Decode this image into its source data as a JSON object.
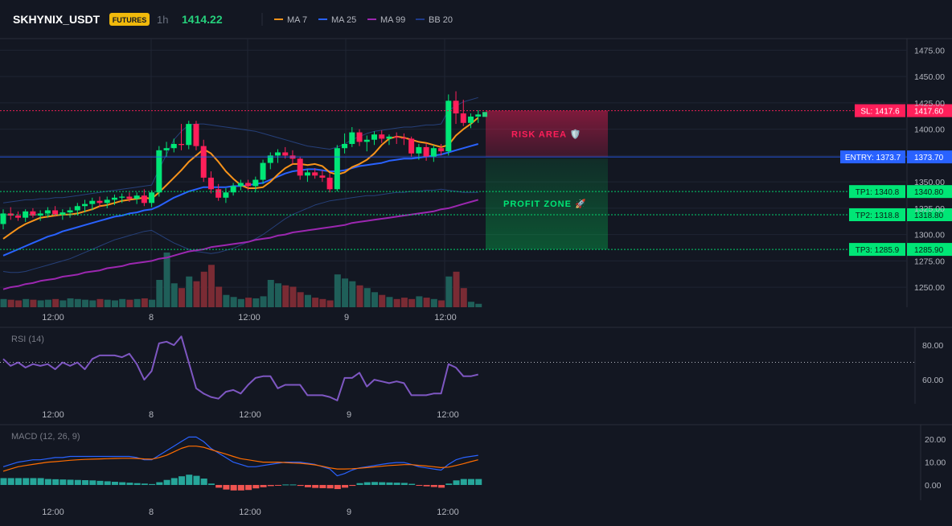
{
  "header": {
    "symbol": "SKHYNIX_USDT",
    "badge": "FUTURES",
    "interval": "1h",
    "price": "1414.22",
    "legend": [
      {
        "label": "MA 7",
        "color": "#f7931a"
      },
      {
        "label": "MA 25",
        "color": "#2962ff"
      },
      {
        "label": "MA 99",
        "color": "#9c27b0"
      },
      {
        "label": "BB 20",
        "color": "#1e3a8a"
      }
    ]
  },
  "colors": {
    "up": "#26a69a",
    "upBright": "#00e676",
    "down": "#ef5350",
    "downBright": "#ff1f5a",
    "sl": "#ff1f5a",
    "entry": "#2962ff",
    "tp": "#00e676",
    "rsi": "#7e57c2",
    "macd": "#2962ff",
    "signal": "#ff6d00"
  },
  "time_axis": [
    "12:00",
    "8",
    "12:00",
    "9",
    "12:00"
  ],
  "chart_data": [
    {
      "type": "candlestick",
      "title": "",
      "xlabel": "",
      "ylabel": "",
      "ylim": [
        1231,
        1486
      ],
      "y_ticks": [
        1475,
        1450,
        1425,
        1400,
        1375,
        1350,
        1325,
        1300,
        1275,
        1250
      ],
      "y_tick_labels": [
        "1475.00",
        "1450.00",
        "1425.00",
        "1400.00",
        "",
        "1350.00",
        "1325.00",
        "1300.00",
        "1275.00",
        "1250.00"
      ],
      "candles": [
        [
          1310,
          1324,
          1305,
          1320
        ],
        [
          1320,
          1326,
          1314,
          1318
        ],
        [
          1318,
          1322,
          1313,
          1316
        ],
        [
          1316,
          1324,
          1312,
          1322
        ],
        [
          1322,
          1325,
          1316,
          1318
        ],
        [
          1318,
          1323,
          1313,
          1320
        ],
        [
          1320,
          1326,
          1316,
          1323
        ],
        [
          1323,
          1327,
          1317,
          1319
        ],
        [
          1319,
          1324,
          1314,
          1321
        ],
        [
          1321,
          1326,
          1316,
          1323
        ],
        [
          1323,
          1330,
          1318,
          1327
        ],
        [
          1327,
          1333,
          1321,
          1329
        ],
        [
          1329,
          1335,
          1323,
          1332
        ],
        [
          1332,
          1336,
          1326,
          1330
        ],
        [
          1330,
          1336,
          1325,
          1333
        ],
        [
          1333,
          1338,
          1328,
          1335
        ],
        [
          1335,
          1339,
          1330,
          1336
        ],
        [
          1336,
          1340,
          1331,
          1334
        ],
        [
          1334,
          1340,
          1329,
          1337
        ],
        [
          1337,
          1343,
          1327,
          1330
        ],
        [
          1330,
          1342,
          1326,
          1340
        ],
        [
          1340,
          1384,
          1336,
          1380
        ],
        [
          1380,
          1388,
          1374,
          1382
        ],
        [
          1382,
          1391,
          1378,
          1386
        ],
        [
          1386,
          1405,
          1380,
          1385
        ],
        [
          1385,
          1408,
          1381,
          1405
        ],
        [
          1405,
          1408,
          1380,
          1384
        ],
        [
          1384,
          1390,
          1350,
          1354
        ],
        [
          1354,
          1360,
          1339,
          1343
        ],
        [
          1343,
          1348,
          1332,
          1335
        ],
        [
          1335,
          1344,
          1330,
          1340
        ],
        [
          1340,
          1349,
          1337,
          1346
        ],
        [
          1346,
          1352,
          1342,
          1349
        ],
        [
          1349,
          1352,
          1342,
          1346
        ],
        [
          1346,
          1355,
          1340,
          1352
        ],
        [
          1352,
          1371,
          1348,
          1368
        ],
        [
          1368,
          1378,
          1362,
          1375
        ],
        [
          1375,
          1381,
          1368,
          1378
        ],
        [
          1378,
          1383,
          1372,
          1375
        ],
        [
          1375,
          1380,
          1367,
          1372
        ],
        [
          1372,
          1374,
          1352,
          1356
        ],
        [
          1356,
          1362,
          1350,
          1359
        ],
        [
          1359,
          1363,
          1353,
          1356
        ],
        [
          1356,
          1361,
          1350,
          1354
        ],
        [
          1354,
          1358,
          1340,
          1343
        ],
        [
          1343,
          1385,
          1341,
          1382
        ],
        [
          1382,
          1396,
          1377,
          1386
        ],
        [
          1386,
          1402,
          1383,
          1397
        ],
        [
          1397,
          1400,
          1384,
          1388
        ],
        [
          1388,
          1394,
          1379,
          1390
        ],
        [
          1390,
          1398,
          1385,
          1395
        ],
        [
          1395,
          1399,
          1387,
          1391
        ],
        [
          1391,
          1395,
          1385,
          1393
        ],
        [
          1393,
          1397,
          1386,
          1392
        ],
        [
          1392,
          1396,
          1385,
          1391
        ],
        [
          1391,
          1393,
          1374,
          1377
        ],
        [
          1377,
          1386,
          1371,
          1383
        ],
        [
          1383,
          1387,
          1370,
          1374
        ],
        [
          1374,
          1385,
          1369,
          1382
        ],
        [
          1382,
          1386,
          1375,
          1379
        ],
        [
          1379,
          1433,
          1375,
          1427
        ],
        [
          1427,
          1436,
          1405,
          1415
        ],
        [
          1415,
          1428,
          1403,
          1406
        ],
        [
          1406,
          1415,
          1401,
          1412
        ],
        [
          1412,
          1418,
          1406,
          1414
        ]
      ],
      "ma7": [
        1296,
        1301,
        1306,
        1310,
        1313,
        1316,
        1317,
        1318,
        1319,
        1319,
        1320,
        1322,
        1324,
        1327,
        1328,
        1330,
        1332,
        1333,
        1334,
        1335,
        1334,
        1340,
        1347,
        1354,
        1361,
        1369,
        1375,
        1381,
        1377,
        1369,
        1360,
        1353,
        1347,
        1344,
        1344,
        1345,
        1350,
        1357,
        1363,
        1367,
        1367,
        1366,
        1367,
        1365,
        1359,
        1357,
        1359,
        1364,
        1367,
        1371,
        1377,
        1385,
        1391,
        1393,
        1392,
        1390,
        1388,
        1387,
        1385,
        1383,
        1385,
        1394,
        1400,
        1405,
        1411
      ],
      "ma25": [
        1280,
        1283,
        1286,
        1289,
        1292,
        1295,
        1298,
        1300,
        1303,
        1305,
        1307,
        1309,
        1311,
        1313,
        1315,
        1317,
        1318,
        1320,
        1321,
        1323,
        1324,
        1327,
        1331,
        1335,
        1338,
        1341,
        1343,
        1345,
        1345,
        1345,
        1345,
        1346,
        1346,
        1347,
        1348,
        1349,
        1352,
        1355,
        1358,
        1360,
        1361,
        1362,
        1362,
        1361,
        1360,
        1360,
        1361,
        1363,
        1365,
        1366,
        1367,
        1368,
        1370,
        1371,
        1372,
        1372,
        1373,
        1374,
        1375,
        1376,
        1378,
        1380,
        1382,
        1384,
        1386
      ],
      "ma99": [
        1248,
        1250,
        1251,
        1253,
        1254,
        1256,
        1257,
        1258,
        1260,
        1261,
        1262,
        1264,
        1265,
        1266,
        1268,
        1269,
        1270,
        1272,
        1273,
        1274,
        1275,
        1277,
        1278,
        1280,
        1282,
        1284,
        1285,
        1286,
        1288,
        1289,
        1290,
        1291,
        1292,
        1293,
        1295,
        1296,
        1297,
        1299,
        1300,
        1302,
        1303,
        1304,
        1305,
        1306,
        1307,
        1308,
        1309,
        1311,
        1312,
        1313,
        1314,
        1315,
        1316,
        1317,
        1318,
        1319,
        1320,
        1321,
        1322,
        1324,
        1325,
        1327,
        1329,
        1331,
        1333
      ],
      "bb_upper": [
        1330,
        1331,
        1332,
        1333,
        1333,
        1334,
        1334,
        1335,
        1335,
        1336,
        1337,
        1338,
        1339,
        1340,
        1341,
        1342,
        1343,
        1344,
        1345,
        1346,
        1347,
        1362,
        1376,
        1390,
        1398,
        1404,
        1405,
        1405,
        1404,
        1403,
        1402,
        1401,
        1400,
        1399,
        1398,
        1396,
        1394,
        1392,
        1390,
        1388,
        1386,
        1384,
        1383,
        1382,
        1381,
        1383,
        1386,
        1390,
        1393,
        1396,
        1398,
        1399,
        1400,
        1401,
        1402,
        1402,
        1403,
        1404,
        1404,
        1405,
        1418,
        1422,
        1426,
        1428,
        1430
      ],
      "bb_lower": [
        1265,
        1264,
        1264,
        1265,
        1267,
        1269,
        1271,
        1273,
        1275,
        1277,
        1280,
        1283,
        1286,
        1289,
        1292,
        1295,
        1297,
        1299,
        1301,
        1303,
        1304,
        1300,
        1296,
        1292,
        1289,
        1286,
        1284,
        1283,
        1282,
        1283,
        1285,
        1287,
        1290,
        1293,
        1296,
        1300,
        1305,
        1310,
        1315,
        1319,
        1322,
        1325,
        1328,
        1330,
        1332,
        1333,
        1334,
        1335,
        1336,
        1337,
        1337,
        1338,
        1339,
        1340,
        1340,
        1341,
        1341,
        1342,
        1342,
        1343,
        1342,
        1341,
        1340,
        1340,
        1340
      ],
      "volume": [
        12,
        11,
        10,
        12,
        11,
        10,
        11,
        12,
        10,
        13,
        12,
        11,
        10,
        12,
        11,
        10,
        12,
        11,
        12,
        13,
        11,
        40,
        80,
        35,
        28,
        45,
        38,
        52,
        62,
        30,
        18,
        15,
        12,
        14,
        13,
        16,
        40,
        35,
        32,
        30,
        22,
        18,
        14,
        12,
        10,
        48,
        42,
        38,
        32,
        28,
        22,
        18,
        15,
        12,
        14,
        12,
        16,
        14,
        12,
        10,
        45,
        52,
        28,
        8,
        5
      ],
      "volume_max": 80,
      "levels": [
        {
          "kind": "sl",
          "value": 1417.6,
          "tag": "SL: 1417.6",
          "axis": "1417.60"
        },
        {
          "kind": "entry",
          "value": 1373.7,
          "tag": "ENTRY: 1373.7",
          "axis": "1373.70"
        },
        {
          "kind": "tp",
          "value": 1340.8,
          "tag": "TP1: 1340.8",
          "axis": "1340.80"
        },
        {
          "kind": "tp",
          "value": 1318.8,
          "tag": "TP2: 1318.8",
          "axis": "1318.80"
        },
        {
          "kind": "tp",
          "value": 1285.9,
          "tag": "TP3: 1285.9",
          "axis": "1285.90"
        }
      ],
      "zones": {
        "risk_label": "RISK AREA 🛡️",
        "profit_label": "PROFIT ZONE 🚀"
      }
    },
    {
      "type": "line",
      "title": "RSI (14)",
      "ylim": [
        47,
        87
      ],
      "y_ticks": [
        80,
        60
      ],
      "y_tick_labels": [
        "80.00",
        "60.00"
      ],
      "dotted_level": 70,
      "values": [
        72,
        68,
        70,
        67,
        69,
        68,
        69,
        66,
        70,
        68,
        70,
        66,
        72,
        74,
        74,
        74,
        73,
        75,
        69,
        60,
        65,
        81,
        82,
        80,
        85,
        70,
        55,
        52,
        50,
        49,
        53,
        54,
        52,
        57,
        61,
        62,
        62,
        55,
        57,
        57,
        57,
        51,
        51,
        51,
        50,
        48,
        61,
        61,
        64,
        56,
        60,
        59,
        58,
        59,
        58,
        51,
        51,
        51,
        52,
        52,
        69,
        67,
        62,
        62,
        63
      ]
    },
    {
      "type": "line",
      "title": "MACD (12, 26, 9)",
      "ylim": [
        -6,
        25
      ],
      "y_ticks": [
        20,
        10,
        0
      ],
      "y_tick_labels": [
        "20.00",
        "10.00",
        "0.00"
      ],
      "macd": [
        8,
        9,
        10,
        10.5,
        11,
        11,
        11.5,
        12,
        12,
        12.5,
        12.5,
        12.5,
        12.5,
        12.5,
        12.5,
        12.5,
        12.5,
        12.5,
        12,
        11,
        11,
        13,
        15,
        17,
        19,
        21,
        21,
        19,
        16,
        14,
        12,
        10,
        9,
        8,
        8,
        8.5,
        9,
        9.5,
        10,
        10,
        10,
        9.5,
        9,
        8,
        7,
        4,
        5,
        6.5,
        7.5,
        8,
        8.5,
        9,
        9.5,
        9.8,
        9.8,
        9,
        8,
        7.5,
        7,
        6.5,
        9,
        11,
        12,
        12.5,
        13
      ],
      "signal": [
        6,
        7,
        8,
        8.5,
        9,
        9.5,
        10,
        10.2,
        10.5,
        10.8,
        11,
        11.2,
        11.3,
        11.4,
        11.5,
        11.6,
        11.7,
        11.7,
        11.6,
        11.4,
        11.3,
        12,
        13,
        14.5,
        16,
        17,
        17,
        16.5,
        15.5,
        14.5,
        13.5,
        12.5,
        11.5,
        11,
        10.5,
        10,
        10,
        10,
        9.8,
        9.6,
        9.5,
        9.2,
        8.8,
        8.2,
        7.5,
        7,
        7,
        7.1,
        7.3,
        7.6,
        7.9,
        8.2,
        8.5,
        8.7,
        8.9,
        8.9,
        8.6,
        8.3,
        8,
        7.6,
        7.8,
        8.5,
        9.3,
        10.2,
        11
      ],
      "histogram": [
        3,
        3,
        3,
        3,
        3,
        3,
        2.6,
        2.5,
        2.4,
        2.3,
        2.2,
        2.1,
        2,
        1.8,
        1.6,
        1.4,
        1.2,
        1,
        0.8,
        0.6,
        0.4,
        1.2,
        2.2,
        3,
        3.8,
        4.5,
        4,
        2.8,
        0.6,
        -1.2,
        -2,
        -2.4,
        -2.4,
        -2.2,
        -1.5,
        -1,
        -0.5,
        -0.2,
        0.2,
        0.2,
        -0.4,
        -1,
        -1.3,
        -1.4,
        -1.5,
        -1.8,
        -1.2,
        -0.4,
        0.8,
        1.2,
        1.3,
        1.2,
        1.1,
        1,
        0.9,
        0.5,
        -0.3,
        -0.6,
        -0.9,
        -1.2,
        0.6,
        2,
        2.6,
        2.6,
        2.6
      ]
    }
  ]
}
